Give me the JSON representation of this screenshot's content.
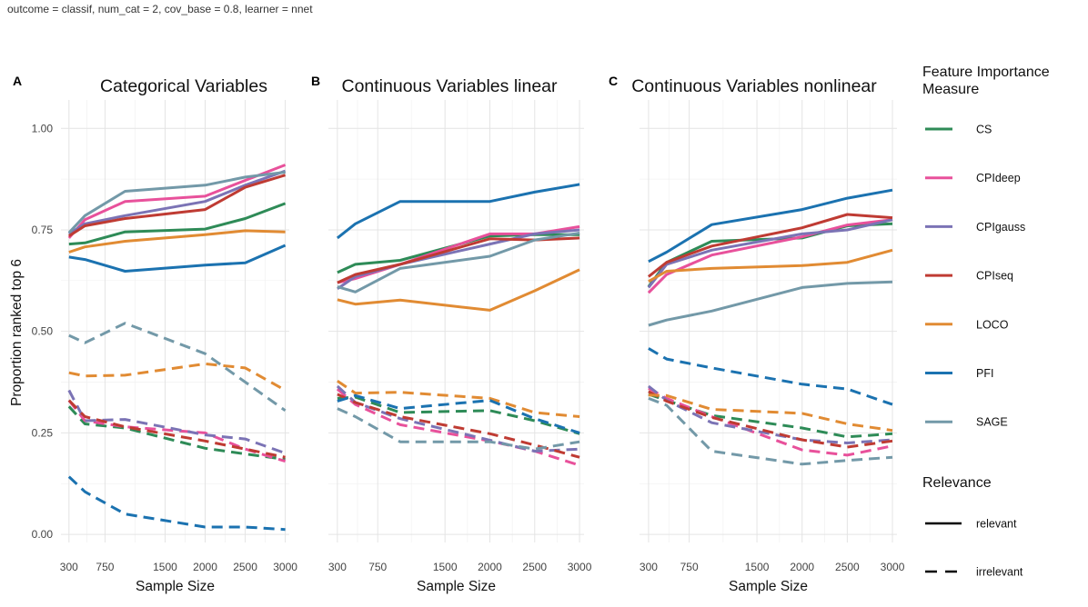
{
  "caption": "outcome = classif, num_cat = 2, cov_base = 0.8, learner = nnet",
  "ylabel": "Proportion ranked top 6",
  "xlabel": "Sample Size",
  "x_ticks": [
    300,
    750,
    1500,
    2000,
    2500,
    3000
  ],
  "y_ticks": [
    0.0,
    0.25,
    0.5,
    0.75,
    1.0
  ],
  "y_tick_labels": [
    "0.00",
    "0.25",
    "0.50",
    "0.75",
    "1.00"
  ],
  "x_sizes": [
    300,
    500,
    1000,
    2000,
    2500,
    3000
  ],
  "legend": {
    "measure_title": "Feature Importance Measure",
    "relevance_title": "Relevance",
    "relevance_items": [
      {
        "label": "relevant",
        "dash": "solid"
      },
      {
        "label": "irrelevant",
        "dash": "dashed"
      }
    ]
  },
  "colors": {
    "CS": "#2e8b57",
    "CPIdeep": "#e8519b",
    "CPIgauss": "#7b73b5",
    "CPIseq": "#bf3b33",
    "LOCO": "#e18b33",
    "PFI": "#1b72b0",
    "SAGE": "#7399a8"
  },
  "chart_data": [
    {
      "type": "line",
      "panel_letter": "A",
      "title": "Categorical Variables",
      "xlabel": "Sample Size",
      "ylabel": "Proportion ranked top 6",
      "x": [
        300,
        500,
        1000,
        2000,
        2500,
        3000
      ],
      "xlim": [
        200,
        3050
      ],
      "ylim": [
        -0.02,
        1.07
      ],
      "series": [
        {
          "name": "CS",
          "relevance": "relevant",
          "values": [
            0.715,
            0.718,
            0.745,
            0.752,
            0.778,
            0.815
          ]
        },
        {
          "name": "CPIdeep",
          "relevance": "relevant",
          "values": [
            0.73,
            0.775,
            0.82,
            0.833,
            0.872,
            0.91
          ]
        },
        {
          "name": "CPIgauss",
          "relevance": "relevant",
          "values": [
            0.74,
            0.765,
            0.785,
            0.82,
            0.86,
            0.895
          ]
        },
        {
          "name": "CPIseq",
          "relevance": "relevant",
          "values": [
            0.735,
            0.76,
            0.778,
            0.8,
            0.855,
            0.885
          ]
        },
        {
          "name": "LOCO",
          "relevance": "relevant",
          "values": [
            0.695,
            0.708,
            0.722,
            0.738,
            0.748,
            0.745
          ]
        },
        {
          "name": "PFI",
          "relevance": "relevant",
          "values": [
            0.683,
            0.677,
            0.648,
            0.663,
            0.669,
            0.712
          ]
        },
        {
          "name": "SAGE",
          "relevance": "relevant",
          "values": [
            0.743,
            0.785,
            0.845,
            0.86,
            0.88,
            0.892
          ]
        },
        {
          "name": "CS",
          "relevance": "irrelevant",
          "values": [
            0.315,
            0.272,
            0.262,
            0.212,
            0.198,
            0.185
          ]
        },
        {
          "name": "CPIdeep",
          "relevance": "irrelevant",
          "values": [
            0.33,
            0.28,
            0.265,
            0.25,
            0.21,
            0.18
          ]
        },
        {
          "name": "CPIgauss",
          "relevance": "irrelevant",
          "values": [
            0.355,
            0.28,
            0.283,
            0.245,
            0.235,
            0.2
          ]
        },
        {
          "name": "CPIseq",
          "relevance": "irrelevant",
          "values": [
            0.33,
            0.29,
            0.265,
            0.23,
            0.21,
            0.19
          ]
        },
        {
          "name": "LOCO",
          "relevance": "irrelevant",
          "values": [
            0.398,
            0.39,
            0.392,
            0.42,
            0.41,
            0.355
          ]
        },
        {
          "name": "PFI",
          "relevance": "irrelevant",
          "values": [
            0.142,
            0.105,
            0.05,
            0.018,
            0.018,
            0.012
          ]
        },
        {
          "name": "SAGE",
          "relevance": "irrelevant",
          "values": [
            0.49,
            0.472,
            0.52,
            0.445,
            0.375,
            0.305
          ]
        }
      ]
    },
    {
      "type": "line",
      "panel_letter": "B",
      "title": "Continuous Variables linear",
      "xlabel": "Sample Size",
      "ylabel": "",
      "x": [
        300,
        500,
        1000,
        2000,
        2500,
        3000
      ],
      "xlim": [
        200,
        3050
      ],
      "ylim": [
        -0.02,
        1.07
      ],
      "series": [
        {
          "name": "CS",
          "relevance": "relevant",
          "values": [
            0.645,
            0.665,
            0.675,
            0.735,
            0.738,
            0.738
          ]
        },
        {
          "name": "CPIdeep",
          "relevance": "relevant",
          "values": [
            0.62,
            0.63,
            0.665,
            0.74,
            0.74,
            0.758
          ]
        },
        {
          "name": "CPIgauss",
          "relevance": "relevant",
          "values": [
            0.605,
            0.635,
            0.665,
            0.715,
            0.74,
            0.75
          ]
        },
        {
          "name": "CPIseq",
          "relevance": "relevant",
          "values": [
            0.62,
            0.64,
            0.665,
            0.728,
            0.725,
            0.73
          ]
        },
        {
          "name": "LOCO",
          "relevance": "relevant",
          "values": [
            0.578,
            0.567,
            0.577,
            0.552,
            0.6,
            0.652
          ]
        },
        {
          "name": "PFI",
          "relevance": "relevant",
          "values": [
            0.73,
            0.765,
            0.82,
            0.82,
            0.843,
            0.862
          ]
        },
        {
          "name": "SAGE",
          "relevance": "relevant",
          "values": [
            0.61,
            0.597,
            0.655,
            0.685,
            0.725,
            0.742
          ]
        },
        {
          "name": "CS",
          "relevance": "irrelevant",
          "values": [
            0.335,
            0.338,
            0.3,
            0.305,
            0.28,
            0.248
          ]
        },
        {
          "name": "CPIdeep",
          "relevance": "irrelevant",
          "values": [
            0.358,
            0.32,
            0.27,
            0.23,
            0.205,
            0.17
          ]
        },
        {
          "name": "CPIgauss",
          "relevance": "irrelevant",
          "values": [
            0.365,
            0.325,
            0.285,
            0.232,
            0.205,
            0.21
          ]
        },
        {
          "name": "CPIseq",
          "relevance": "irrelevant",
          "values": [
            0.345,
            0.325,
            0.29,
            0.248,
            0.22,
            0.19
          ]
        },
        {
          "name": "LOCO",
          "relevance": "irrelevant",
          "values": [
            0.378,
            0.348,
            0.35,
            0.335,
            0.3,
            0.29
          ]
        },
        {
          "name": "PFI",
          "relevance": "irrelevant",
          "values": [
            0.328,
            0.342,
            0.31,
            0.33,
            0.285,
            0.25
          ]
        },
        {
          "name": "SAGE",
          "relevance": "irrelevant",
          "values": [
            0.31,
            0.29,
            0.228,
            0.228,
            0.21,
            0.228
          ]
        }
      ]
    },
    {
      "type": "line",
      "panel_letter": "C",
      "title": "Continuous Variables nonlinear",
      "xlabel": "Sample Size",
      "ylabel": "",
      "x": [
        300,
        500,
        1000,
        2000,
        2500,
        3000
      ],
      "xlim": [
        200,
        3050
      ],
      "ylim": [
        -0.02,
        1.07
      ],
      "series": [
        {
          "name": "CS",
          "relevance": "relevant",
          "values": [
            0.61,
            0.67,
            0.722,
            0.73,
            0.76,
            0.765
          ]
        },
        {
          "name": "CPIdeep",
          "relevance": "relevant",
          "values": [
            0.595,
            0.64,
            0.688,
            0.733,
            0.762,
            0.775
          ]
        },
        {
          "name": "CPIgauss",
          "relevance": "relevant",
          "values": [
            0.608,
            0.665,
            0.7,
            0.74,
            0.75,
            0.775
          ]
        },
        {
          "name": "CPIseq",
          "relevance": "relevant",
          "values": [
            0.635,
            0.67,
            0.71,
            0.755,
            0.788,
            0.78
          ]
        },
        {
          "name": "LOCO",
          "relevance": "relevant",
          "values": [
            0.623,
            0.648,
            0.655,
            0.662,
            0.67,
            0.7
          ]
        },
        {
          "name": "PFI",
          "relevance": "relevant",
          "values": [
            0.672,
            0.695,
            0.763,
            0.8,
            0.828,
            0.848
          ]
        },
        {
          "name": "SAGE",
          "relevance": "relevant",
          "values": [
            0.515,
            0.528,
            0.55,
            0.608,
            0.618,
            0.622
          ]
        },
        {
          "name": "CS",
          "relevance": "irrelevant",
          "values": [
            0.345,
            0.33,
            0.293,
            0.262,
            0.24,
            0.248
          ]
        },
        {
          "name": "CPIdeep",
          "relevance": "irrelevant",
          "values": [
            0.36,
            0.335,
            0.29,
            0.208,
            0.195,
            0.218
          ]
        },
        {
          "name": "CPIgauss",
          "relevance": "irrelevant",
          "values": [
            0.365,
            0.33,
            0.275,
            0.233,
            0.225,
            0.233
          ]
        },
        {
          "name": "CPIseq",
          "relevance": "irrelevant",
          "values": [
            0.352,
            0.328,
            0.288,
            0.233,
            0.215,
            0.23
          ]
        },
        {
          "name": "LOCO",
          "relevance": "irrelevant",
          "values": [
            0.343,
            0.342,
            0.308,
            0.298,
            0.272,
            0.256
          ]
        },
        {
          "name": "PFI",
          "relevance": "irrelevant",
          "values": [
            0.458,
            0.432,
            0.41,
            0.37,
            0.358,
            0.32
          ]
        },
        {
          "name": "SAGE",
          "relevance": "irrelevant",
          "values": [
            0.335,
            0.318,
            0.205,
            0.173,
            0.182,
            0.19
          ]
        }
      ]
    }
  ]
}
